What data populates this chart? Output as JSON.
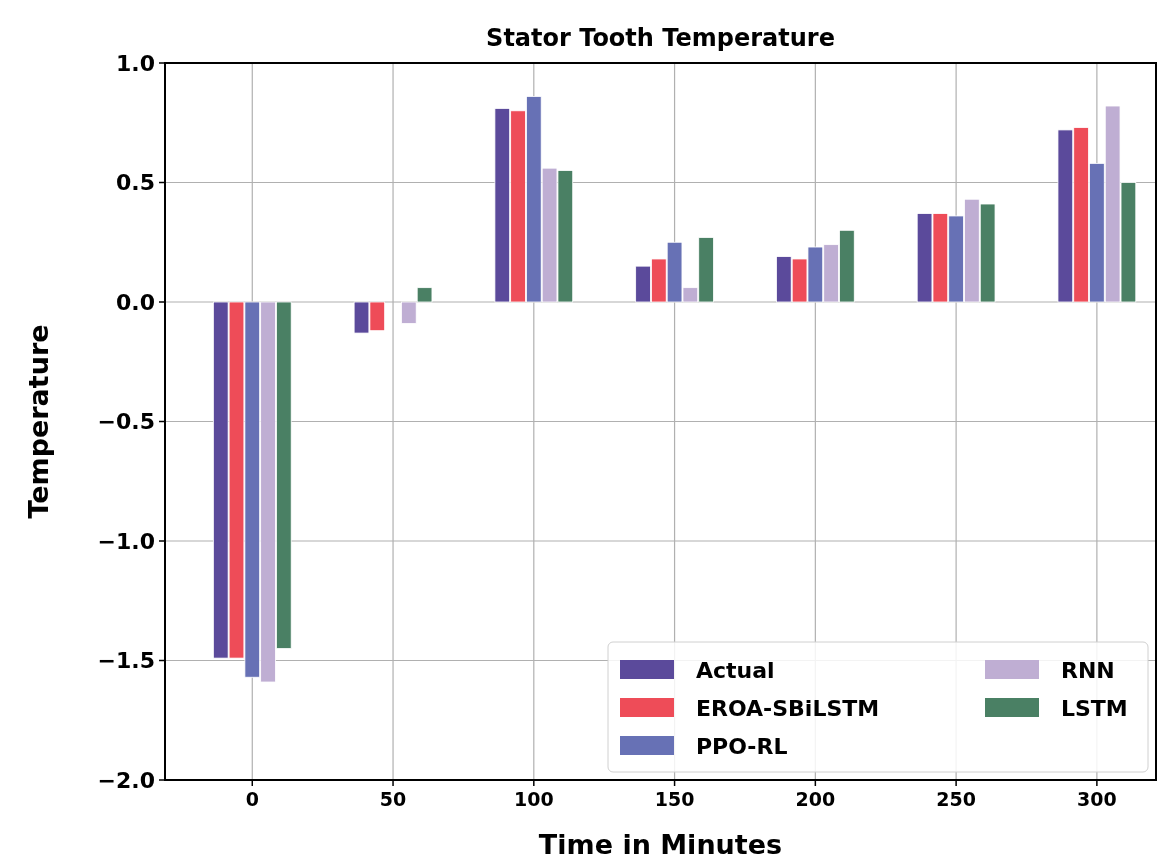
{
  "chart_data": {
    "type": "bar",
    "title": "Stator Tooth Temperature",
    "xlabel": "Time in Minutes",
    "ylabel": "Temperature",
    "x": [
      0,
      50,
      100,
      150,
      200,
      250,
      300
    ],
    "xlim": [
      -31,
      321
    ],
    "xticks": [
      0,
      50,
      100,
      150,
      200,
      250,
      300
    ],
    "ylim": [
      -2.0,
      1.0
    ],
    "yticks": [
      {
        "value": -2,
        "label": "−2.0"
      },
      {
        "value": -1.5,
        "label": "−1.5"
      },
      {
        "value": -1,
        "label": "−1.0"
      },
      {
        "value": -0.5,
        "label": "−0.5"
      },
      {
        "value": 0,
        "label": "0.0"
      },
      {
        "value": 0.5,
        "label": "0.5"
      },
      {
        "value": 1,
        "label": "1.0"
      }
    ],
    "grid": true,
    "legend": "bottom right",
    "series": [
      {
        "name": "Actual",
        "color": "#5b4a9b",
        "values": [
          -1.49,
          -0.13,
          0.81,
          0.15,
          0.19,
          0.37,
          0.72
        ]
      },
      {
        "name": "EROA-SBiLSTM",
        "color": "#ee4c58",
        "values": [
          -1.49,
          -0.12,
          0.8,
          0.18,
          0.18,
          0.37,
          0.73
        ]
      },
      {
        "name": "PPO-RL",
        "color": "#6771b5",
        "values": [
          -1.57,
          null,
          0.86,
          0.25,
          0.23,
          0.36,
          0.58
        ]
      },
      {
        "name": "RNN",
        "color": "#bfaed3",
        "values": [
          -1.59,
          -0.09,
          0.56,
          0.06,
          0.24,
          0.43,
          0.82
        ]
      },
      {
        "name": "LSTM",
        "color": "#4a8064",
        "values": [
          -1.45,
          0.06,
          0.55,
          0.27,
          0.3,
          0.41,
          0.5
        ]
      }
    ]
  }
}
